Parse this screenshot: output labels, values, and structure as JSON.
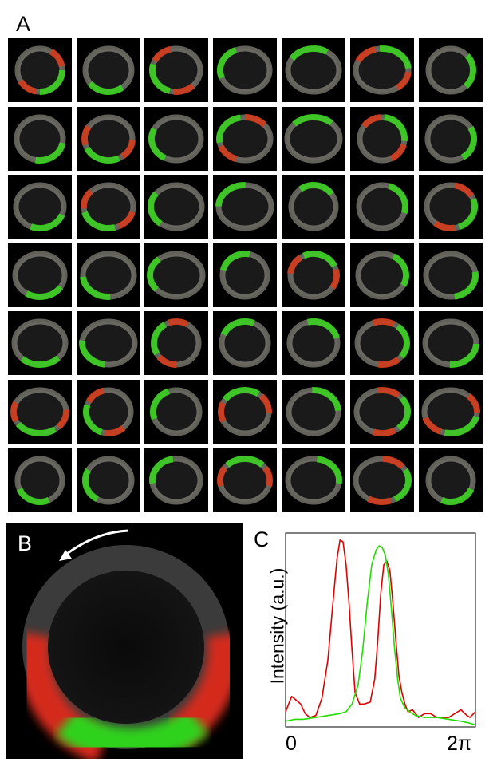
{
  "panels": {
    "a": "A",
    "b": "B",
    "c": "C"
  },
  "chart_data": {
    "type": "line",
    "title": "",
    "ylabel": "Intensity (a.u.)",
    "xlabel": "",
    "x_tick_labels": [
      "0",
      "2π"
    ],
    "xlim": [
      0,
      6.2832
    ],
    "ylim": [
      0,
      1
    ],
    "grid": false,
    "series": [
      {
        "color": "#e00000",
        "x": [
          0,
          0.1,
          0.2,
          0.35,
          0.5,
          0.65,
          0.8,
          1.0,
          1.2,
          1.4,
          1.55,
          1.7,
          1.8,
          1.9,
          2.0,
          2.1,
          2.2,
          2.3,
          2.45,
          2.6,
          2.8,
          2.95,
          3.05,
          3.15,
          3.25,
          3.35,
          3.45,
          3.55,
          3.65,
          3.75,
          3.85,
          3.95,
          4.05,
          4.2,
          4.4,
          4.6,
          4.8,
          5.0,
          5.2,
          5.4,
          5.6,
          5.8,
          6.0,
          6.1,
          6.2832
        ],
        "y": [
          0.08,
          0.12,
          0.16,
          0.14,
          0.12,
          0.07,
          0.05,
          0.06,
          0.15,
          0.35,
          0.62,
          0.88,
          0.98,
          0.97,
          0.85,
          0.65,
          0.4,
          0.18,
          0.12,
          0.12,
          0.13,
          0.25,
          0.45,
          0.7,
          0.85,
          0.87,
          0.82,
          0.65,
          0.45,
          0.27,
          0.18,
          0.12,
          0.08,
          0.09,
          0.05,
          0.07,
          0.07,
          0.05,
          0.05,
          0.05,
          0.07,
          0.09,
          0.06,
          0.05,
          0.08
        ]
      },
      {
        "color": "#22dd00",
        "x": [
          0,
          0.3,
          0.6,
          1.0,
          1.4,
          1.8,
          2.0,
          2.2,
          2.4,
          2.55,
          2.7,
          2.85,
          3.0,
          3.1,
          3.2,
          3.3,
          3.4,
          3.5,
          3.6,
          3.7,
          3.8,
          3.95,
          4.1,
          4.3,
          4.6,
          5.0,
          5.4,
          5.8,
          6.1,
          6.2832
        ],
        "y": [
          0.03,
          0.04,
          0.04,
          0.05,
          0.06,
          0.07,
          0.08,
          0.12,
          0.22,
          0.4,
          0.65,
          0.85,
          0.93,
          0.95,
          0.94,
          0.9,
          0.8,
          0.62,
          0.42,
          0.26,
          0.15,
          0.1,
          0.08,
          0.06,
          0.05,
          0.05,
          0.04,
          0.03,
          0.02,
          0.01
        ]
      }
    ]
  }
}
